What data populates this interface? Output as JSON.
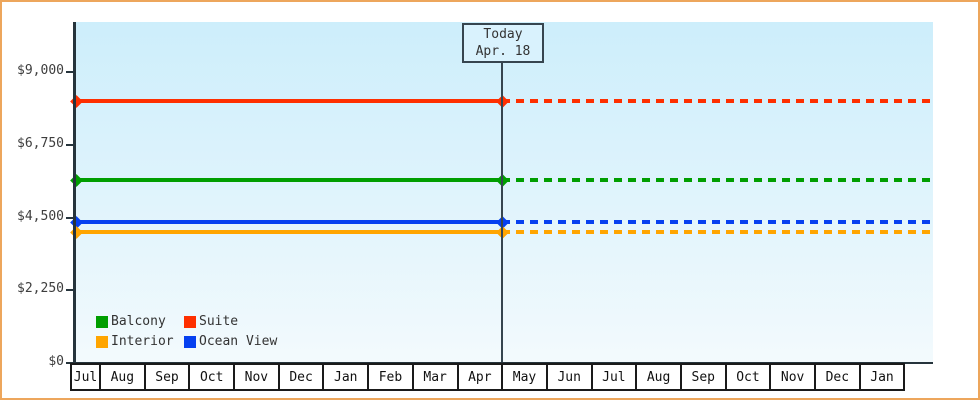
{
  "frame": {
    "border_color": "#eda65c",
    "background": "#ffffff"
  },
  "chart_data": {
    "type": "line",
    "title": "",
    "description": "Cabin price history chart: flat price lines per cabin category, solid before today, dashed (forecast) after today",
    "x": {
      "months": [
        "Jul",
        "Aug",
        "Sep",
        "Oct",
        "Nov",
        "Dec",
        "Jan",
        "Feb",
        "Mar",
        "Apr",
        "May",
        "Jun",
        "Jul",
        "Aug",
        "Sep",
        "Oct",
        "Nov",
        "Dec",
        "Jan"
      ]
    },
    "y": {
      "tick_labels": [
        "$9,000",
        "$6,750",
        "$4,500",
        "$2,250",
        "$0"
      ],
      "tick_values": [
        9000,
        6750,
        4500,
        2250,
        0
      ],
      "min": 0,
      "max": 9000
    },
    "today": {
      "line1": "Today",
      "line2": "Apr. 18"
    },
    "series": [
      {
        "name": "Suite",
        "color": "#fe2f00",
        "value": 8100
      },
      {
        "name": "Balcony",
        "color": "#009e00",
        "value": 5650
      },
      {
        "name": "Ocean View",
        "color": "#0540f0",
        "value": 4350
      },
      {
        "name": "Interior",
        "color": "#ffa500",
        "value": 4050
      }
    ],
    "legend": {
      "order": [
        "Balcony",
        "Suite",
        "Interior",
        "Ocean View"
      ],
      "columns": 2,
      "position": "bottom-left-inside-plot"
    },
    "style": {
      "grid": false,
      "solid_past_dashed_future": true,
      "marker": "diamond"
    }
  }
}
